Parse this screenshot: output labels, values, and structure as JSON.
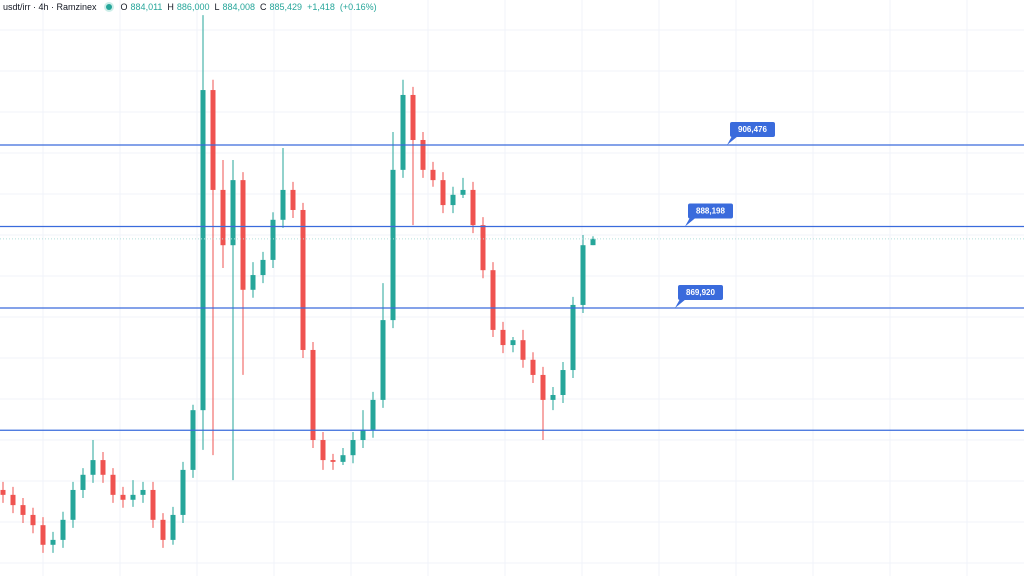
{
  "chart_data": {
    "type": "candlestick",
    "legend": {
      "symbol": "usdt/irr · 4h · Ramzinex",
      "fields": [
        {
          "key": "O",
          "value": 884011,
          "label": "884,011"
        },
        {
          "key": "H",
          "value": 886000,
          "label": "886,000"
        },
        {
          "key": "L",
          "value": 884008,
          "label": "884,008"
        },
        {
          "key": "C",
          "value": 885429,
          "label": "885,429"
        }
      ],
      "change": {
        "value": 1418,
        "label": "+1,418"
      },
      "change_percent": {
        "value": 0.16,
        "label": "(+0.16%)"
      }
    },
    "ylim": [
      809800,
      939000
    ],
    "up_color": "#26a69a",
    "down_color": "#ef5350",
    "level_color": "#3a6bdc",
    "grid": true,
    "levels": [
      {
        "value": 906476,
        "label": "906,476"
      },
      {
        "value": 888198,
        "label": "888,198"
      },
      {
        "value": 869920,
        "label": "869,920"
      },
      {
        "value": 842500
      }
    ],
    "ohlc": [
      [
        829100,
        830900,
        826200,
        828000
      ],
      [
        828000,
        829800,
        823900,
        825700
      ],
      [
        825700,
        827300,
        821700,
        823500
      ],
      [
        823500,
        825100,
        819400,
        821200
      ],
      [
        821200,
        823000,
        815000,
        816800
      ],
      [
        816800,
        819700,
        815000,
        817900
      ],
      [
        817900,
        824200,
        816100,
        822400
      ],
      [
        822400,
        830900,
        820600,
        829100
      ],
      [
        829100,
        834000,
        827300,
        832500
      ],
      [
        832500,
        840300,
        830700,
        835800
      ],
      [
        835800,
        837600,
        830700,
        832500
      ],
      [
        832500,
        834000,
        826200,
        828000
      ],
      [
        828000,
        829800,
        825100,
        826900
      ],
      [
        826900,
        831300,
        825300,
        828000
      ],
      [
        828000,
        830900,
        826200,
        829100
      ],
      [
        829100,
        830900,
        820600,
        822400
      ],
      [
        822400,
        823900,
        816100,
        817900
      ],
      [
        817900,
        825300,
        816800,
        823500
      ],
      [
        823500,
        835400,
        821700,
        833600
      ],
      [
        833600,
        848200,
        831800,
        847000
      ],
      [
        847000,
        935600,
        838100,
        918800
      ],
      [
        918800,
        921100,
        836900,
        896400
      ],
      [
        896400,
        903100,
        878900,
        884000
      ],
      [
        884000,
        903100,
        831300,
        898600
      ],
      [
        898600,
        900400,
        854900,
        874000
      ],
      [
        874000,
        880200,
        872200,
        877300
      ],
      [
        877300,
        882500,
        875500,
        880700
      ],
      [
        880700,
        891400,
        878900,
        889700
      ],
      [
        889700,
        905800,
        887900,
        896400
      ],
      [
        896400,
        898200,
        890100,
        891900
      ],
      [
        891900,
        893500,
        858700,
        860500
      ],
      [
        860500,
        862300,
        838500,
        840300
      ],
      [
        840300,
        842100,
        833600,
        835800
      ],
      [
        835800,
        837200,
        833600,
        835400
      ],
      [
        835400,
        838500,
        834700,
        836900
      ],
      [
        836900,
        842100,
        835100,
        840300
      ],
      [
        840300,
        847000,
        838500,
        842600
      ],
      [
        842600,
        851100,
        840800,
        849300
      ],
      [
        849300,
        875500,
        847500,
        867200
      ],
      [
        867200,
        909400,
        865400,
        900900
      ],
      [
        900900,
        921100,
        899100,
        917700
      ],
      [
        917700,
        919500,
        888500,
        907600
      ],
      [
        907600,
        909400,
        899100,
        900900
      ],
      [
        900900,
        902700,
        897100,
        898600
      ],
      [
        898600,
        900400,
        891200,
        893000
      ],
      [
        893000,
        897100,
        891200,
        895300
      ],
      [
        895300,
        899100,
        894600,
        896400
      ],
      [
        896400,
        898200,
        886700,
        888500
      ],
      [
        888500,
        890300,
        876600,
        878400
      ],
      [
        878400,
        880200,
        863400,
        865000
      ],
      [
        865000,
        866800,
        859800,
        861600
      ],
      [
        861600,
        863400,
        860000,
        862700
      ],
      [
        862700,
        865000,
        856500,
        858300
      ],
      [
        858300,
        860000,
        853100,
        854900
      ],
      [
        854900,
        856700,
        840300,
        849300
      ],
      [
        849300,
        852200,
        847000,
        850400
      ],
      [
        850400,
        857800,
        848600,
        856000
      ],
      [
        856000,
        872400,
        854200,
        870600
      ],
      [
        870600,
        886300,
        868800,
        884000
      ],
      [
        884011,
        886000,
        884008,
        885429
      ]
    ]
  }
}
